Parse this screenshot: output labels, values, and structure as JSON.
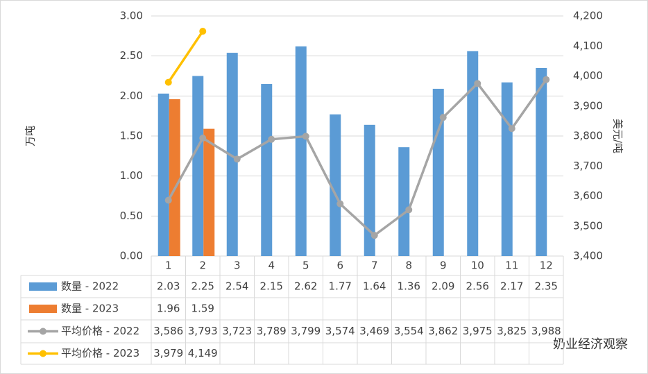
{
  "chart_data": {
    "type": "bar",
    "y_label": "万吨",
    "y2_label": "美元/吨",
    "watermark": "奶业经济观察",
    "categories": [
      "1",
      "2",
      "3",
      "4",
      "5",
      "6",
      "7",
      "8",
      "9",
      "10",
      "11",
      "12"
    ],
    "ylim": [
      0,
      3
    ],
    "yticks": [
      {
        "value": 0,
        "label": "0.00"
      },
      {
        "value": 0.5,
        "label": "0.50"
      },
      {
        "value": 1,
        "label": "1.00"
      },
      {
        "value": 1.5,
        "label": "1.50"
      },
      {
        "value": 2,
        "label": "2.00"
      },
      {
        "value": 2.5,
        "label": "2.50"
      },
      {
        "value": 3,
        "label": "3.00"
      }
    ],
    "y2lim": [
      3400,
      4200
    ],
    "y2ticks": [
      {
        "value": 3400,
        "label": "3,400"
      },
      {
        "value": 3500,
        "label": "3,500"
      },
      {
        "value": 3600,
        "label": "3,600"
      },
      {
        "value": 3700,
        "label": "3,700"
      },
      {
        "value": 3800,
        "label": "3,800"
      },
      {
        "value": 3900,
        "label": "3,900"
      },
      {
        "value": 4000,
        "label": "4,000"
      },
      {
        "value": 4100,
        "label": "4,100"
      },
      {
        "value": 4200,
        "label": "4,200"
      }
    ],
    "grid": true,
    "series": [
      {
        "name": "数量 - 2022",
        "type": "bar",
        "color": "#5b9bd5",
        "values": [
          2.03,
          2.25,
          2.54,
          2.15,
          2.62,
          1.77,
          1.64,
          1.36,
          2.09,
          2.56,
          2.17,
          2.35
        ]
      },
      {
        "name": "数量 - 2023",
        "type": "bar",
        "color": "#ed7d31",
        "values": [
          1.96,
          1.59,
          null,
          null,
          null,
          null,
          null,
          null,
          null,
          null,
          null,
          null
        ]
      },
      {
        "name": "平均价格 - 2022",
        "type": "line",
        "axis": "y2",
        "color": "#a5a5a5",
        "values": [
          3586,
          3793,
          3723,
          3789,
          3799,
          3574,
          3469,
          3554,
          3862,
          3975,
          3825,
          3988
        ],
        "value_labels": [
          "3,586",
          "3,793",
          "3,723",
          "3,789",
          "3,799",
          "3,574",
          "3,469",
          "3,554",
          "3,862",
          "3,975",
          "3,825",
          "3,988"
        ]
      },
      {
        "name": "平均价格 - 2023",
        "type": "line",
        "axis": "y2",
        "color": "#ffc000",
        "values": [
          3979,
          4149,
          null,
          null,
          null,
          null,
          null,
          null,
          null,
          null,
          null,
          null
        ],
        "value_labels": [
          "3,979",
          "4,149",
          null,
          null,
          null,
          null,
          null,
          null,
          null,
          null,
          null,
          null
        ]
      }
    ]
  }
}
